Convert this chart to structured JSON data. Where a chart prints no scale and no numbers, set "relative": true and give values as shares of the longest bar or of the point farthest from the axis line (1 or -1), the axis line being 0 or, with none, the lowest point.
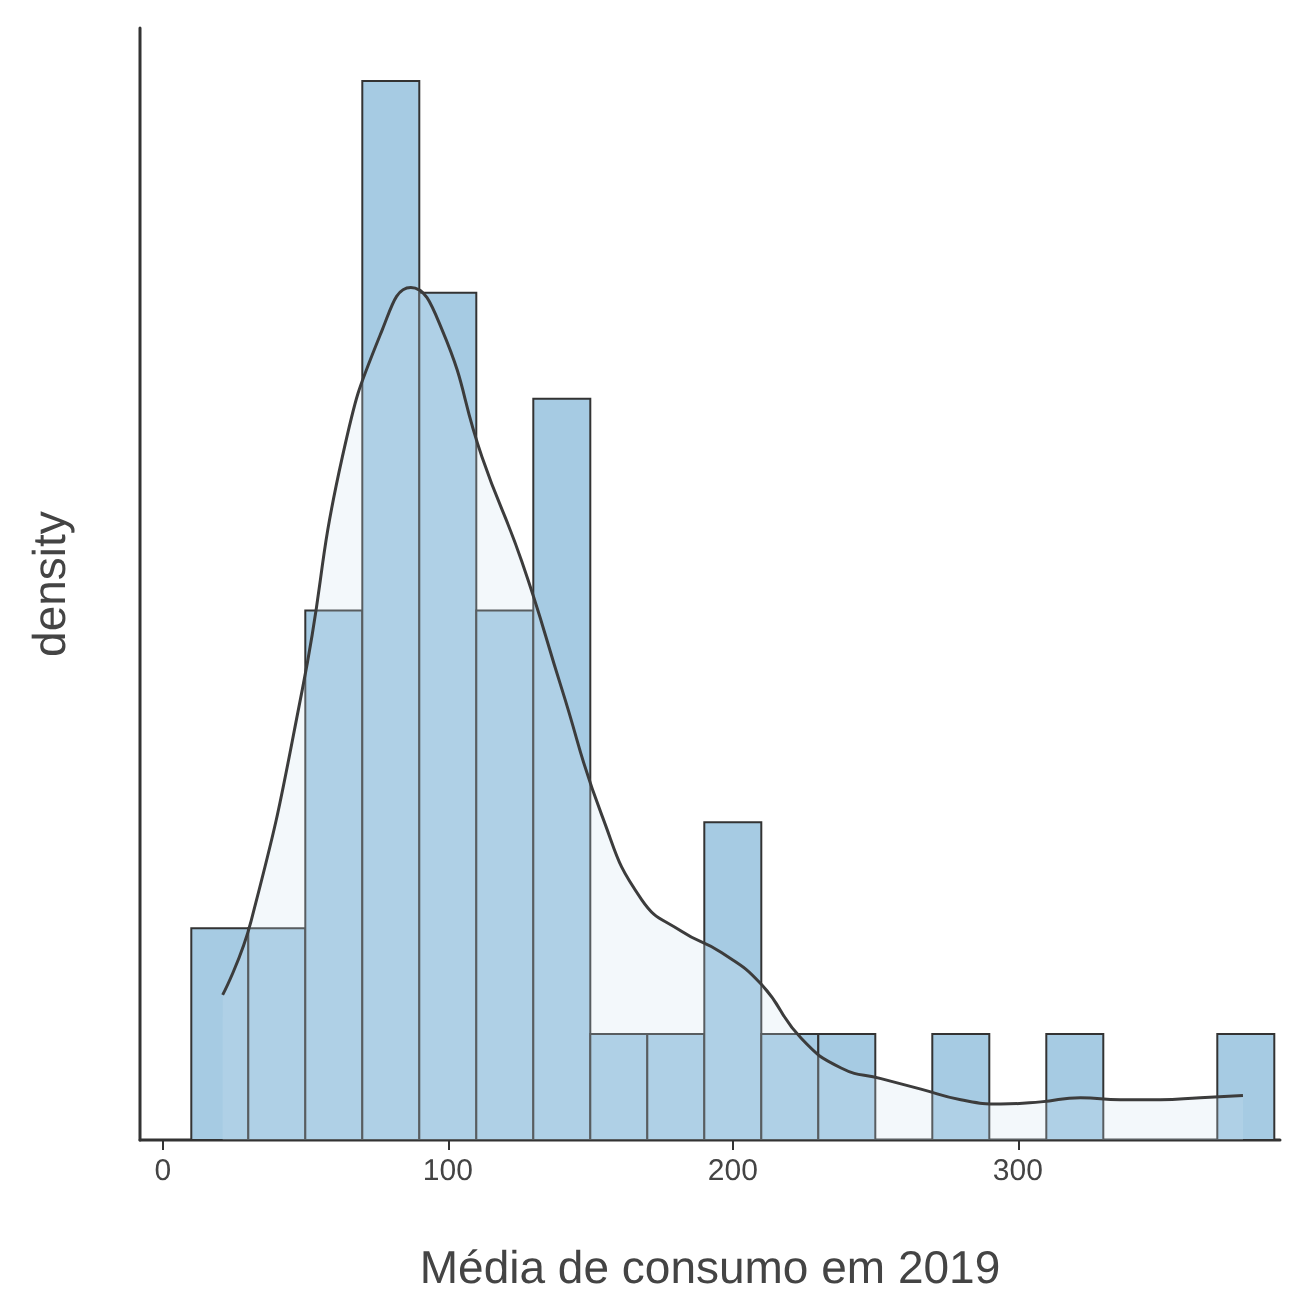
{
  "chart_data": {
    "type": "histogram",
    "xlabel": "Média de consumo em 2019",
    "ylabel": "density",
    "relative": true,
    "bins": [
      10,
      30,
      50,
      70,
      90,
      110,
      130,
      150,
      170,
      190,
      210,
      230,
      250,
      270,
      290,
      310,
      330,
      350,
      370,
      390
    ],
    "values": [
      0.2,
      0.2,
      0.5,
      1,
      0.8,
      0.5,
      0.7,
      0.1,
      0.1,
      0.3,
      0.1,
      0.1,
      0,
      0.1,
      0,
      0.1,
      0,
      0,
      0.1
    ],
    "color": "#a6cbe3",
    "series": [
      {
        "type": "area",
        "color": "#3c3c3c",
        "x": [
          21,
          31,
          49,
          63,
          77,
          87,
          98,
          112,
          126,
          140,
          154,
          168,
          182,
          196,
          210,
          224,
          238,
          252,
          266,
          280,
          294,
          308,
          322,
          336,
          350,
          364,
          379
        ],
        "values": [
          0.137,
          0.207,
          0.426,
          0.645,
          0.765,
          0.805,
          0.765,
          0.645,
          0.546,
          0.426,
          0.307,
          0.227,
          0.197,
          0.177,
          0.147,
          0.096,
          0.068,
          0.058,
          0.048,
          0.038,
          0.034,
          0.036,
          0.04,
          0.038,
          0.038,
          0.04,
          0.042
        ]
      }
    ],
    "xlim": [
      -8,
      392
    ],
    "xticks": [
      0,
      100,
      200,
      300
    ],
    "grid": false,
    "legend": false
  }
}
